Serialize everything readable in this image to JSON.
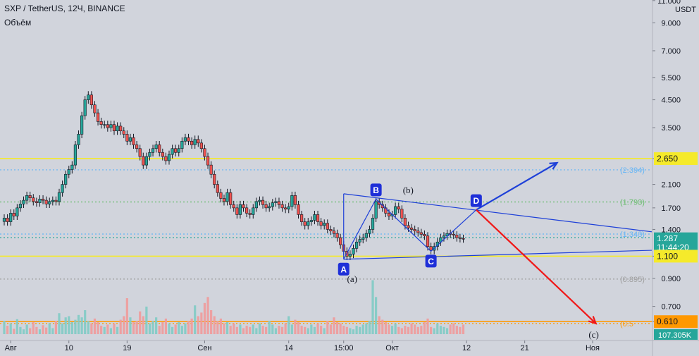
{
  "header": {
    "title": "SXP / TetherUS, 12Ч, BINANCE",
    "volume_label": "Объём"
  },
  "chart_data": {
    "type": "candlestick",
    "scale": "log",
    "currency": "USDT",
    "price_ticks": [
      11.0,
      9.0,
      7.0,
      5.5,
      4.5,
      3.5,
      2.65,
      2.1,
      1.7,
      1.4,
      1.1,
      0.9,
      0.7,
      0.61
    ],
    "price_tick_labels": [
      "11.000",
      "9.000",
      "7.000",
      "5.500",
      "4.500",
      "3.500",
      "2.650",
      "2.100",
      "1.700",
      "1.400",
      "1.100",
      "0.900",
      "0.700",
      "0.610"
    ],
    "price_badges": [
      {
        "label": "2.650",
        "price": 2.65,
        "color": "#f5ea2b",
        "text_color": "#131722"
      },
      {
        "label": "1.287",
        "price": 1.287,
        "color": "#26a69a",
        "text_color": "#ffffff"
      },
      {
        "label": "11:44:20",
        "price": 1.19,
        "color": "#26a69a",
        "text_color": "#ffffff"
      },
      {
        "label": "1.100",
        "price": 1.1,
        "color": "#f5ea2b",
        "text_color": "#131722"
      },
      {
        "label": "0.610",
        "price": 0.61,
        "color": "#ff9800",
        "text_color": "#131722"
      }
    ],
    "volume_badge": "107.305K",
    "x_ticks": [
      {
        "label": "Авг",
        "idx": 2
      },
      {
        "label": "10",
        "idx": 20
      },
      {
        "label": "19",
        "idx": 38
      },
      {
        "label": "Сен",
        "idx": 62
      },
      {
        "label": "14",
        "idx": 88
      },
      {
        "label": "15:00",
        "idx": 105
      },
      {
        "label": "Окт",
        "idx": 120
      },
      {
        "label": "12",
        "idx": 143
      },
      {
        "label": "21",
        "idx": 161
      },
      {
        "label": "Ноя",
        "idx": 182
      }
    ],
    "x_range": [
      0,
      199
    ],
    "horizontal_levels": [
      {
        "price": 2.65,
        "style": "solid",
        "color": "#f5ea2b"
      },
      {
        "price": 1.1,
        "style": "solid",
        "color": "#f5ea2b"
      },
      {
        "price": 0.61,
        "style": "solid",
        "color": "#ff9800"
      },
      {
        "price": 2.394,
        "style": "dotted",
        "color": "#64b5f6",
        "label": "(2.394)"
      },
      {
        "price": 1.793,
        "style": "dotted",
        "color": "#66bb6a",
        "label": "(1.793)"
      },
      {
        "price": 1.343,
        "style": "dotted",
        "color": "#64b5f6",
        "label": "(1.343)"
      },
      {
        "price": 1.3,
        "style": "dotted",
        "color": "#26a69a"
      },
      {
        "price": 0.895,
        "style": "dotted",
        "color": "#9e9e9e",
        "label": "(0.895)"
      },
      {
        "price": 0.6,
        "style": "dotted",
        "color": "#ff9800",
        "label": "(0.5"
      }
    ],
    "wave_points": [
      {
        "label": "A",
        "idx": 105,
        "price": 1.07
      },
      {
        "label": "B",
        "idx": 115,
        "price": 1.84
      },
      {
        "label": "C",
        "idx": 132,
        "price": 1.15
      },
      {
        "label": "D",
        "idx": 146,
        "price": 1.67
      }
    ],
    "annotations": [
      "(a)",
      "(b)",
      "(c)"
    ],
    "projections": [
      {
        "from_idx": 146,
        "from_price": 1.67,
        "to_idx": 171,
        "to_price": 2.55,
        "color": "#1e40d8"
      },
      {
        "from_idx": 146,
        "from_price": 1.67,
        "to_idx": 183,
        "to_price": 0.6,
        "color": "#f01818"
      }
    ],
    "price_series": [
      1.55,
      1.5,
      1.62,
      1.58,
      1.7,
      1.76,
      1.82,
      1.9,
      1.86,
      1.8,
      1.78,
      1.84,
      1.82,
      1.76,
      1.8,
      1.82,
      1.8,
      1.95,
      2.1,
      2.3,
      2.4,
      2.5,
      3.0,
      3.3,
      3.9,
      4.5,
      4.7,
      4.3,
      4.0,
      3.7,
      3.6,
      3.6,
      3.5,
      3.6,
      3.4,
      3.55,
      3.4,
      3.3,
      3.1,
      3.2,
      3.0,
      2.9,
      2.7,
      2.5,
      2.7,
      2.8,
      2.9,
      3.0,
      2.8,
      2.7,
      2.6,
      2.75,
      2.9,
      2.8,
      2.9,
      3.1,
      3.2,
      3.1,
      3.0,
      3.15,
      3.05,
      2.9,
      2.7,
      2.5,
      2.3,
      2.1,
      1.95,
      1.85,
      1.8,
      1.95,
      1.75,
      1.7,
      1.6,
      1.75,
      1.7,
      1.62,
      1.6,
      1.7,
      1.8,
      1.82,
      1.75,
      1.7,
      1.72,
      1.78,
      1.8,
      1.75,
      1.7,
      1.68,
      1.72,
      1.9,
      1.75,
      1.6,
      1.5,
      1.45,
      1.5,
      1.52,
      1.6,
      1.5,
      1.45,
      1.48,
      1.4,
      1.38,
      1.35,
      1.3,
      1.22,
      1.15,
      1.1,
      1.12,
      1.18,
      1.25,
      1.28,
      1.3,
      1.35,
      1.4,
      1.55,
      1.8,
      1.75,
      1.7,
      1.62,
      1.58,
      1.6,
      1.72,
      1.68,
      1.55,
      1.45,
      1.42,
      1.4,
      1.38,
      1.36,
      1.34,
      1.32,
      1.2,
      1.16,
      1.2,
      1.25,
      1.3,
      1.32,
      1.35,
      1.34,
      1.33,
      1.3,
      1.29,
      1.287
    ],
    "volume_series": [
      22,
      14,
      18,
      9,
      25,
      12,
      8,
      16,
      10,
      20,
      12,
      8,
      15,
      11,
      18,
      10,
      22,
      35,
      18,
      28,
      30,
      20,
      24,
      32,
      28,
      40,
      22,
      18,
      26,
      20,
      14,
      12,
      16,
      10,
      18,
      12,
      24,
      30,
      60,
      28,
      20,
      22,
      38,
      30,
      46,
      18,
      22,
      28,
      14,
      20,
      26,
      18,
      12,
      16,
      20,
      14,
      18,
      22,
      26,
      48,
      30,
      36,
      52,
      62,
      40,
      30,
      22,
      26,
      18,
      20,
      14,
      18,
      12,
      16,
      10,
      14,
      12,
      16,
      10,
      18,
      14,
      12,
      22,
      16,
      10,
      14,
      12,
      18,
      30,
      16,
      24,
      20,
      14,
      12,
      10,
      16,
      12,
      18,
      14,
      10,
      22,
      16,
      28,
      20,
      18,
      14,
      12,
      10,
      8,
      14,
      12,
      16,
      18,
      22,
      90,
      62,
      30,
      24,
      20,
      16,
      14,
      18,
      12,
      10,
      14,
      12,
      18,
      16,
      12,
      14,
      20,
      26,
      12,
      10,
      18,
      14,
      12,
      10,
      16,
      18,
      14,
      12,
      16
    ],
    "volume_max": 100
  }
}
